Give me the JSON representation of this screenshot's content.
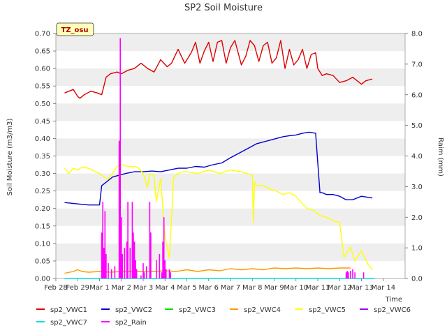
{
  "chart_data": {
    "type": "line",
    "title": "SP2 Soil Moisture",
    "xlabel": "Time",
    "ylabel": "Soil Moisture (m3/m3)",
    "y2label": "Raim (mm)",
    "badge": "TZ_osu",
    "xlim": [
      0,
      16
    ],
    "ylim": [
      0,
      0.7
    ],
    "y2lim": [
      0,
      8
    ],
    "x_ticks": [
      {
        "x": 0,
        "label": "Feb 28"
      },
      {
        "x": 1,
        "label": "Feb 29"
      },
      {
        "x": 2,
        "label": "Mar 1"
      },
      {
        "x": 3,
        "label": "Mar 2"
      },
      {
        "x": 4,
        "label": "Mar 3"
      },
      {
        "x": 5,
        "label": "Mar 4"
      },
      {
        "x": 6,
        "label": "Mar 5"
      },
      {
        "x": 7,
        "label": "Mar 6"
      },
      {
        "x": 8,
        "label": "Mar 7"
      },
      {
        "x": 9,
        "label": "Mar 8"
      },
      {
        "x": 10,
        "label": "Mar 9"
      },
      {
        "x": 11,
        "label": "Mar 10"
      },
      {
        "x": 12,
        "label": "Mar 11"
      },
      {
        "x": 13,
        "label": "Mar 12"
      },
      {
        "x": 14,
        "label": "Mar 13"
      },
      {
        "x": 15,
        "label": "Mar 14"
      }
    ],
    "y_ticks": [
      "0.00",
      "0.05",
      "0.10",
      "0.15",
      "0.20",
      "0.25",
      "0.30",
      "0.35",
      "0.40",
      "0.45",
      "0.50",
      "0.55",
      "0.60",
      "0.65",
      "0.70"
    ],
    "y2_ticks": [
      "0.0",
      "1.0",
      "2.0",
      "3.0",
      "4.0",
      "5.0",
      "6.0",
      "7.0",
      "8.0"
    ],
    "grid": "horizontal bands",
    "legend_position": "bottom",
    "series": [
      {
        "name": "sp2_VWC1",
        "color": "#dd0000",
        "axis": "left",
        "x": [
          0.4,
          0.8,
          1.0,
          1.1,
          1.3,
          1.6,
          1.9,
          2.1,
          2.2,
          2.3,
          2.5,
          2.8,
          3.0,
          3.3,
          3.6,
          3.9,
          4.2,
          4.5,
          4.8,
          5.1,
          5.3,
          5.6,
          5.9,
          6.2,
          6.4,
          6.6,
          6.8,
          7.0,
          7.2,
          7.4,
          7.6,
          7.8,
          8.0,
          8.2,
          8.5,
          8.7,
          8.9,
          9.1,
          9.3,
          9.5,
          9.7,
          9.9,
          10.1,
          10.3,
          10.5,
          10.7,
          10.9,
          11.1,
          11.3,
          11.5,
          11.7,
          11.9,
          12.0,
          12.2,
          12.4,
          12.7,
          13.0,
          13.3,
          13.6,
          13.8,
          14.0,
          14.2,
          14.5
        ],
        "values": [
          0.53,
          0.54,
          0.52,
          0.515,
          0.525,
          0.535,
          0.53,
          0.525,
          0.55,
          0.575,
          0.585,
          0.59,
          0.585,
          0.595,
          0.6,
          0.615,
          0.6,
          0.59,
          0.625,
          0.605,
          0.615,
          0.655,
          0.615,
          0.645,
          0.675,
          0.615,
          0.65,
          0.675,
          0.62,
          0.675,
          0.68,
          0.615,
          0.66,
          0.68,
          0.61,
          0.635,
          0.68,
          0.665,
          0.62,
          0.665,
          0.675,
          0.615,
          0.63,
          0.68,
          0.6,
          0.655,
          0.61,
          0.625,
          0.655,
          0.6,
          0.64,
          0.645,
          0.6,
          0.58,
          0.585,
          0.58,
          0.56,
          0.565,
          0.575,
          0.565,
          0.555,
          0.565,
          0.57
        ]
      },
      {
        "name": "sp2_VWC2",
        "color": "#0000cc",
        "axis": "left",
        "x": [
          0.4,
          1.0,
          1.5,
          2.0,
          2.1,
          2.3,
          2.6,
          2.9,
          3.2,
          3.6,
          4.0,
          4.4,
          4.8,
          5.2,
          5.6,
          6.0,
          6.4,
          6.8,
          7.2,
          7.6,
          8.0,
          8.3,
          8.6,
          8.9,
          9.2,
          9.5,
          9.8,
          10.1,
          10.4,
          10.7,
          11.0,
          11.3,
          11.6,
          11.9,
          12.1,
          12.2,
          12.4,
          12.7,
          13.0,
          13.3,
          13.6,
          14.0,
          14.5
        ],
        "values": [
          0.217,
          0.213,
          0.21,
          0.21,
          0.265,
          0.275,
          0.29,
          0.295,
          0.3,
          0.305,
          0.305,
          0.307,
          0.305,
          0.31,
          0.315,
          0.315,
          0.32,
          0.318,
          0.325,
          0.33,
          0.345,
          0.355,
          0.365,
          0.375,
          0.385,
          0.39,
          0.395,
          0.4,
          0.405,
          0.408,
          0.41,
          0.415,
          0.418,
          0.415,
          0.245,
          0.245,
          0.24,
          0.24,
          0.235,
          0.225,
          0.225,
          0.235,
          0.23
        ]
      },
      {
        "name": "sp2_VWC3",
        "color": "#00dd00",
        "axis": "left",
        "x": [],
        "values": []
      },
      {
        "name": "sp2_VWC4",
        "color": "#ff9900",
        "axis": "left",
        "x": [
          0.4,
          0.8,
          1.0,
          1.2,
          1.5,
          2.0,
          2.5,
          3.0,
          3.5,
          4.0,
          4.5,
          5.0,
          5.5,
          6.0,
          6.5,
          7.0,
          7.5,
          8.0,
          8.5,
          9.0,
          9.5,
          10.0,
          10.5,
          11.0,
          11.5,
          12.0,
          12.5,
          13.0,
          13.5
        ],
        "values": [
          0.015,
          0.02,
          0.025,
          0.02,
          0.018,
          0.02,
          0.018,
          0.02,
          0.02,
          0.02,
          0.02,
          0.022,
          0.02,
          0.025,
          0.02,
          0.025,
          0.022,
          0.028,
          0.025,
          0.028,
          0.025,
          0.03,
          0.028,
          0.03,
          0.028,
          0.03,
          0.028,
          0.03,
          0.03
        ]
      },
      {
        "name": "sp2_VWC5",
        "color": "#ffff00",
        "axis": "left",
        "x": [
          0.4,
          0.6,
          0.8,
          1.0,
          1.2,
          1.5,
          1.8,
          2.0,
          2.2,
          2.4,
          2.6,
          2.8,
          3.0,
          3.3,
          3.6,
          3.8,
          4.0,
          4.2,
          4.3,
          4.5,
          4.6,
          4.8,
          5.0,
          5.2,
          5.4,
          5.6,
          5.8,
          6.0,
          6.5,
          7.0,
          7.5,
          8.0,
          8.5,
          9.0,
          9.05,
          9.1,
          9.2,
          9.5,
          9.8,
          10.1,
          10.4,
          10.7,
          11.0,
          11.2,
          11.5,
          11.8,
          12.1,
          12.4,
          12.7,
          13.0,
          13.2,
          13.5,
          13.7,
          14.0,
          14.3,
          14.5
        ],
        "values": [
          0.315,
          0.3,
          0.315,
          0.31,
          0.318,
          0.315,
          0.305,
          0.3,
          0.29,
          0.285,
          0.3,
          0.32,
          0.325,
          0.32,
          0.32,
          0.315,
          0.3,
          0.26,
          0.3,
          0.295,
          0.22,
          0.285,
          0.12,
          0.06,
          0.29,
          0.3,
          0.305,
          0.305,
          0.3,
          0.31,
          0.3,
          0.31,
          0.305,
          0.295,
          0.16,
          0.275,
          0.265,
          0.265,
          0.255,
          0.25,
          0.24,
          0.245,
          0.235,
          0.22,
          0.2,
          0.195,
          0.18,
          0.175,
          0.165,
          0.16,
          0.06,
          0.09,
          0.05,
          0.08,
          0.04,
          0.025
        ]
      },
      {
        "name": "sp2_VWC6",
        "color": "#9900ee",
        "axis": "left",
        "x": [],
        "values": []
      },
      {
        "name": "sp2_VWC7",
        "color": "#00dddd",
        "axis": "left",
        "x": [
          0.4,
          14.6
        ],
        "values": [
          0.0,
          0.0
        ]
      },
      {
        "name": "sp2_Rain",
        "color": "#ff00ff",
        "axis": "right",
        "x": [
          2.1,
          2.15,
          2.2,
          2.25,
          2.3,
          2.4,
          2.55,
          2.7,
          2.9,
          2.95,
          3.0,
          3.05,
          3.15,
          3.25,
          3.3,
          3.4,
          3.5,
          3.55,
          3.6,
          3.65,
          3.7,
          3.9,
          4.0,
          4.05,
          4.15,
          4.3,
          4.35,
          4.6,
          4.75,
          4.85,
          4.9,
          4.95,
          5.0,
          5.05,
          5.2,
          5.25,
          13.3,
          13.35,
          13.4,
          13.5,
          13.6,
          13.7,
          14.1
        ],
        "values": [
          1.5,
          2.5,
          1.0,
          2.2,
          0.8,
          0.5,
          0.3,
          0.4,
          4.5,
          7.85,
          2.0,
          0.8,
          1.0,
          1.2,
          2.5,
          1.0,
          2.5,
          1.5,
          1.2,
          0.6,
          0.3,
          0.1,
          0.5,
          0.2,
          0.4,
          2.5,
          1.5,
          0.6,
          0.8,
          0.2,
          1.2,
          2.0,
          0.6,
          0.3,
          0.3,
          0.2,
          0.2,
          0.25,
          0.2,
          0.25,
          0.3,
          0.2,
          0.2
        ]
      }
    ]
  }
}
